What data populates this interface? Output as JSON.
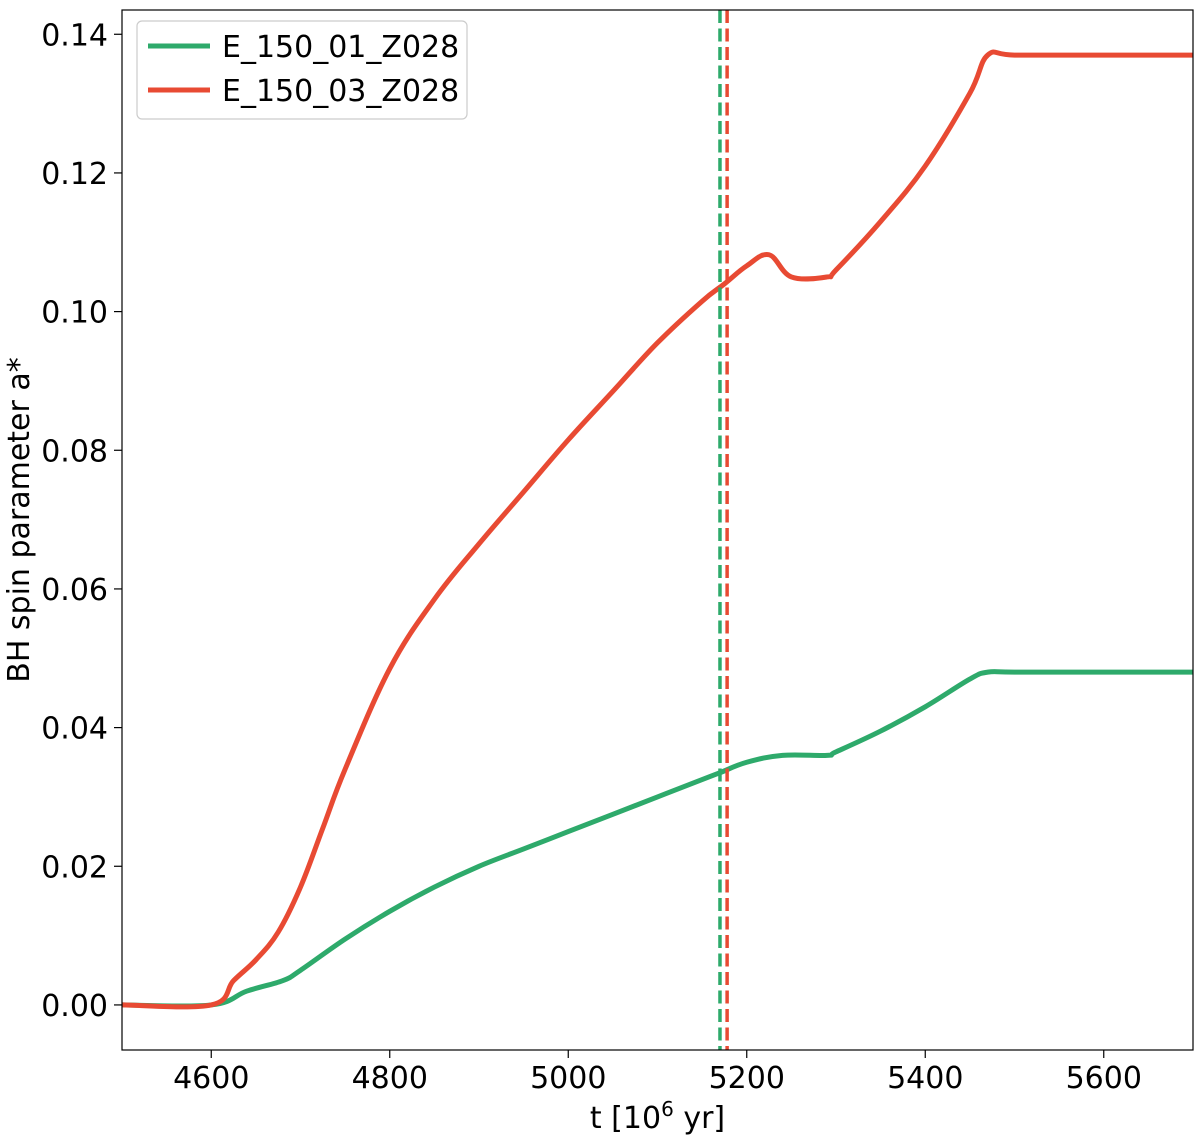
{
  "chart_data": {
    "type": "line",
    "title": "",
    "xlabel_main": "t [10",
    "xlabel_sup": "6",
    "xlabel_tail": " yr]",
    "ylabel": "BH spin parameter a*",
    "xlim": [
      4500,
      5700
    ],
    "ylim": [
      -0.0065,
      0.1435
    ],
    "xticks": [
      4600,
      4800,
      5000,
      5200,
      5400,
      5600
    ],
    "xtick_labels": [
      "4600",
      "4800",
      "5000",
      "5200",
      "5400",
      "5600"
    ],
    "yticks": [
      0.0,
      0.02,
      0.04,
      0.06,
      0.08,
      0.1,
      0.12,
      0.14
    ],
    "ytick_labels": [
      "0.00",
      "0.02",
      "0.04",
      "0.06",
      "0.08",
      "0.10",
      "0.12",
      "0.14"
    ],
    "grid": false,
    "legend_position": "top-left",
    "series": [
      {
        "name": "E_150_01_Z028",
        "color": "#2eaa6b",
        "x": [
          4500,
          4600,
          4640,
          4680,
          4700,
          4750,
          4800,
          4850,
          4900,
          4950,
          5000,
          5050,
          5100,
          5150,
          5170,
          5200,
          5240,
          5290,
          5300,
          5350,
          5400,
          5450,
          5470,
          5500,
          5600,
          5700
        ],
        "y": [
          0.0,
          0.0,
          0.002,
          0.0035,
          0.005,
          0.0095,
          0.0135,
          0.017,
          0.02,
          0.0225,
          0.025,
          0.0275,
          0.03,
          0.0325,
          0.0335,
          0.035,
          0.036,
          0.036,
          0.0365,
          0.0395,
          0.043,
          0.047,
          0.048,
          0.048,
          0.048,
          0.048
        ],
        "vline_x": 5170
      },
      {
        "name": "E_150_03_Z028",
        "color": "#e84a33",
        "x": [
          4500,
          4600,
          4625,
          4650,
          4675,
          4700,
          4725,
          4750,
          4800,
          4850,
          4900,
          4950,
          5000,
          5050,
          5100,
          5150,
          5175,
          5200,
          5225,
          5250,
          5290,
          5300,
          5350,
          5400,
          5450,
          5470,
          5500,
          5600,
          5700
        ],
        "y": [
          0.0,
          0.0,
          0.0035,
          0.0065,
          0.0105,
          0.017,
          0.0255,
          0.034,
          0.0485,
          0.0585,
          0.0665,
          0.074,
          0.0815,
          0.0885,
          0.0955,
          0.1015,
          0.104,
          0.1066,
          0.1082,
          0.105,
          0.105,
          0.106,
          0.113,
          0.121,
          0.1315,
          0.137,
          0.137,
          0.137,
          0.137
        ],
        "vline_x": 5178
      }
    ]
  }
}
